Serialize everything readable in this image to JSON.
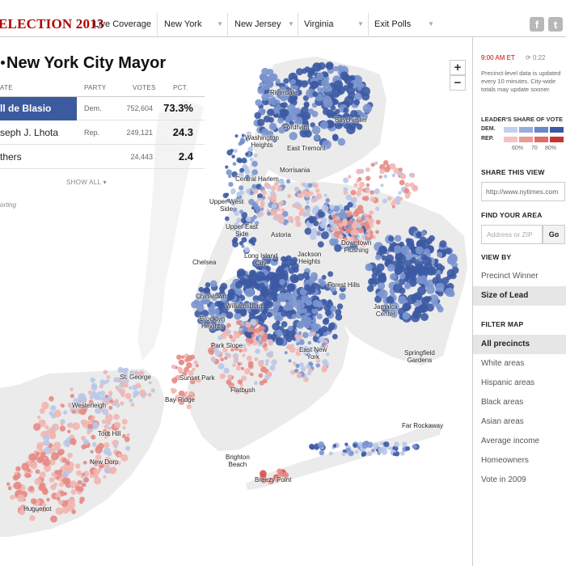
{
  "nav": {
    "brand": "ELECTION 2013",
    "items": [
      "Live Coverage",
      "New York",
      "New Jersey",
      "Virginia",
      "Exit Polls"
    ],
    "social": [
      "f",
      "t"
    ]
  },
  "race": {
    "title": "New York City Mayor",
    "headers": {
      "candidate": "ATE",
      "party": "PARTY",
      "votes": "VOTES",
      "pct": "PCT."
    },
    "candidates": [
      {
        "name": "ll de Blasio",
        "party": "Dem.",
        "votes": "752,604",
        "pct": "73.3%"
      },
      {
        "name": "seph J. Lhota",
        "party": "Rep.",
        "votes": "249,121",
        "pct": "24.3"
      },
      {
        "name": "thers",
        "party": "",
        "votes": "24,443",
        "pct": "2.4"
      }
    ],
    "show_all": "SHOW ALL ▾",
    "reporting": "orting"
  },
  "map": {
    "zoom_in": "+",
    "zoom_out": "−",
    "colors": {
      "dem_dark": "#3c5aa3",
      "dem_mid": "#7a95cf",
      "dem_light": "#b9c8e8",
      "rep_dark": "#d9554f",
      "rep_mid": "#e58a84",
      "rep_light": "#f1b6b1",
      "land": "#ebebeb"
    },
    "labels": [
      {
        "id": "riverdale",
        "text": "Riverdale"
      },
      {
        "id": "baychester",
        "text": "Baychester"
      },
      {
        "id": "fordham",
        "text": "Fordham"
      },
      {
        "id": "washington-heights",
        "text": "Washington\nHeights"
      },
      {
        "id": "east-tremont",
        "text": "East Tremont"
      },
      {
        "id": "morrisania",
        "text": "Morrisania"
      },
      {
        "id": "central-harlem",
        "text": "Central Harlem"
      },
      {
        "id": "upper-west-side",
        "text": "Upper West\nSide"
      },
      {
        "id": "upper-east-side",
        "text": "Upper East\nSide"
      },
      {
        "id": "astoria",
        "text": "Astoria"
      },
      {
        "id": "downtown-flushing",
        "text": "Downtown\nFlushing"
      },
      {
        "id": "chelsea",
        "text": "Chelsea"
      },
      {
        "id": "long-island-city",
        "text": "Long Island\nCity"
      },
      {
        "id": "jackson-heights",
        "text": "Jackson\nHeights"
      },
      {
        "id": "forest-hills",
        "text": "Forest Hills"
      },
      {
        "id": "chinatown",
        "text": "Chinatown"
      },
      {
        "id": "williamsburg",
        "text": "Williamsburg"
      },
      {
        "id": "jamaica-center",
        "text": "Jamaica\nCenter"
      },
      {
        "id": "brooklyn-heights",
        "text": "Brooklyn\nHeights"
      },
      {
        "id": "park-slope",
        "text": "Park Slope"
      },
      {
        "id": "east-new-york",
        "text": "East New\nYork"
      },
      {
        "id": "springfield-gardens",
        "text": "Springfield\nGardens"
      },
      {
        "id": "st-george",
        "text": "St. George"
      },
      {
        "id": "sunset-park",
        "text": "Sunset Park"
      },
      {
        "id": "westerleigh",
        "text": "Westerleigh"
      },
      {
        "id": "flatbush",
        "text": "Flatbush"
      },
      {
        "id": "bay-ridge",
        "text": "Bay Ridge"
      },
      {
        "id": "todt-hill",
        "text": "Todt Hill"
      },
      {
        "id": "far-rockaway",
        "text": "Far Rockaway"
      },
      {
        "id": "new-dorp",
        "text": "New Dorp"
      },
      {
        "id": "brighton-beach",
        "text": "Brighton\nBeach"
      },
      {
        "id": "breezy-point",
        "text": "Breezy Point"
      },
      {
        "id": "huguenot",
        "text": "Huguenot"
      }
    ]
  },
  "sidebar": {
    "time": "9:00 AM ET",
    "refresh": "⟳ 0:22",
    "note": "Precinct-level data is updated every 10 minutes. City-wide totals may update sooner.",
    "legend_title": "LEADER'S SHARE OF VOTE",
    "legend_dem": "DEM.",
    "legend_rep": "REP.",
    "legend_ticks": [
      "60%",
      "70",
      "80%"
    ],
    "dem_colors": [
      "#c3d0ec",
      "#97addc",
      "#6a86c6",
      "#3c5aa3"
    ],
    "rep_colors": [
      "#f5c3bf",
      "#ec9a94",
      "#e06b65",
      "#c8342f"
    ],
    "share_title": "SHARE THIS VIEW",
    "share_url": "http://www.nytimes.com",
    "find_title": "FIND YOUR AREA",
    "zip_placeholder": "Address or ZIP",
    "go": "Go",
    "view_title": "VIEW BY",
    "view_options": [
      "Precinct Winner",
      "Size of Lead"
    ],
    "filter_title": "FILTER MAP",
    "filter_options": [
      "All precincts",
      "White areas",
      "Hispanic areas",
      "Black areas",
      "Asian areas",
      "Average income",
      "Homeowners",
      "Vote in 2009"
    ]
  }
}
